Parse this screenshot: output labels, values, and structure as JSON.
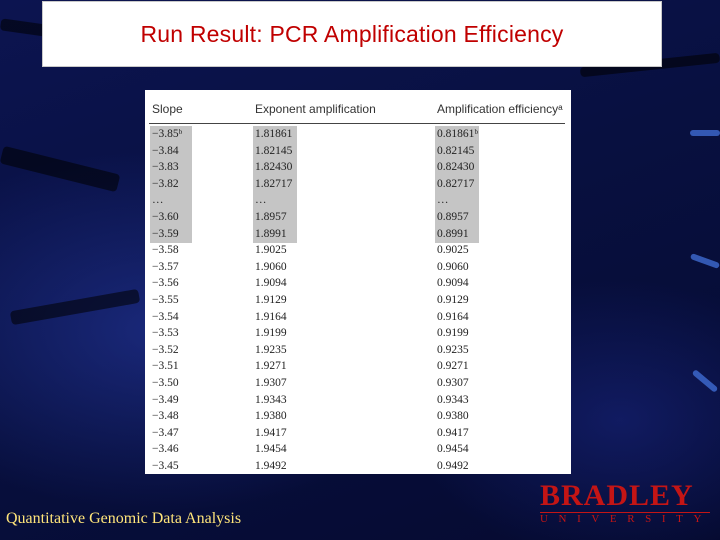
{
  "slide": {
    "title": "Run Result: PCR Amplification Efficiency",
    "footer": "Quantitative Genomic Data Analysis",
    "logo": {
      "word": "BRADLEY",
      "sub": "UNIVERSITY"
    }
  },
  "table": {
    "headers": [
      "Slope",
      "Exponent amplification",
      "Amplification efficiencyᵃ"
    ],
    "rows": [
      [
        "−3.85ᵇ",
        "1.81861",
        "0.81861ᵇ"
      ],
      [
        "−3.84",
        "1.82145",
        "0.82145"
      ],
      [
        "−3.83",
        "1.82430",
        "0.82430"
      ],
      [
        "−3.82",
        "1.82717",
        "0.82717"
      ],
      [
        "…",
        "…",
        "…"
      ],
      [
        "−3.60",
        "1.8957",
        "0.8957"
      ],
      [
        "−3.59",
        "1.8991",
        "0.8991"
      ],
      [
        "−3.58",
        "1.9025",
        "0.9025"
      ],
      [
        "−3.57",
        "1.9060",
        "0.9060"
      ],
      [
        "−3.56",
        "1.9094",
        "0.9094"
      ],
      [
        "−3.55",
        "1.9129",
        "0.9129"
      ],
      [
        "−3.54",
        "1.9164",
        "0.9164"
      ],
      [
        "−3.53",
        "1.9199",
        "0.9199"
      ],
      [
        "−3.52",
        "1.9235",
        "0.9235"
      ],
      [
        "−3.51",
        "1.9271",
        "0.9271"
      ],
      [
        "−3.50",
        "1.9307",
        "0.9307"
      ],
      [
        "−3.49",
        "1.9343",
        "0.9343"
      ],
      [
        "−3.48",
        "1.9380",
        "0.9380"
      ],
      [
        "−3.47",
        "1.9417",
        "0.9417"
      ],
      [
        "−3.46",
        "1.9454",
        "0.9454"
      ],
      [
        "−3.45",
        "1.9492",
        "0.9492"
      ]
    ],
    "highlighted_row_count": 7
  },
  "colors": {
    "title": "#c00000",
    "footer_text": "#ffe57a",
    "logo": "#c41515",
    "highlight": "#c5c5c5"
  }
}
